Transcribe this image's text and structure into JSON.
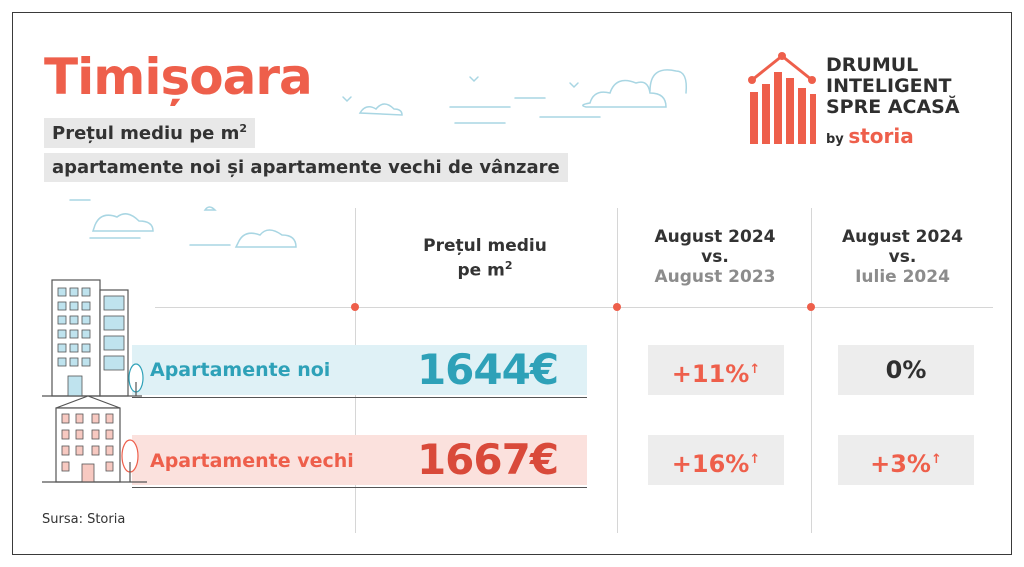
{
  "header": {
    "city": "Timișoara",
    "subtitle_line1": "Prețul mediu pe m",
    "subtitle_line1_sup": "2",
    "subtitle_line2": "apartamente noi și apartamente vechi de vânzare"
  },
  "logo": {
    "line1": "DRUMUL",
    "line2": "INTELIGENT",
    "line3": "SPRE ACASĂ",
    "by": "by",
    "brand": "storia"
  },
  "columns": {
    "price": {
      "line1": "Prețul mediu",
      "line2": "pe m",
      "sup": "2"
    },
    "yoy": {
      "line1": "August 2024",
      "line2": "vs.",
      "line3": "August 2023"
    },
    "mom": {
      "line1": "August 2024",
      "line2": "vs.",
      "line3": "Iulie 2024"
    }
  },
  "rows": [
    {
      "label": "Apartamente noi",
      "price": "1644€",
      "yoy": "+11%",
      "yoy_arrow": "↑",
      "mom": "0%",
      "mom_arrow": ""
    },
    {
      "label": "Apartamente vechi",
      "price": "1667€",
      "yoy": "+16%",
      "yoy_arrow": "↑",
      "mom": "+3%",
      "mom_arrow": "↑"
    }
  ],
  "source": "Sursa: Storia",
  "colors": {
    "accent_red": "#ee5f4b",
    "accent_teal": "#2ea1b8",
    "band_teal": "#dff1f6",
    "band_pink": "#fbe1dd"
  }
}
